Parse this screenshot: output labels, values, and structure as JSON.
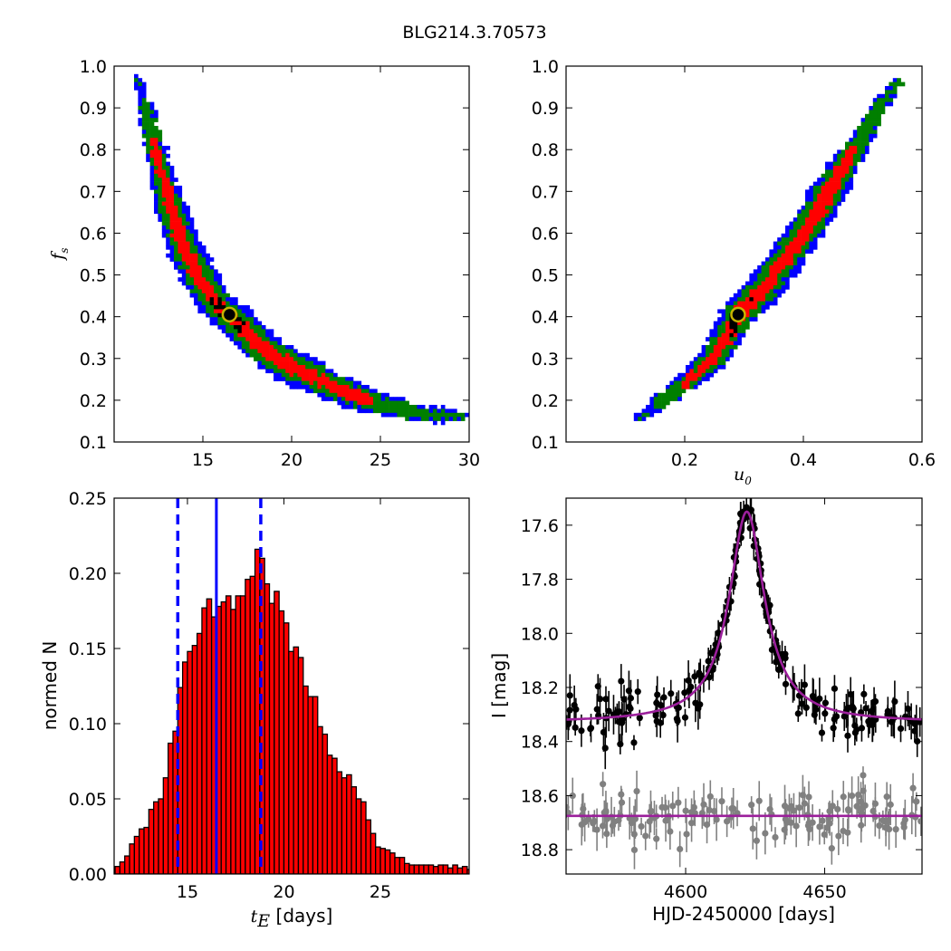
{
  "figure": {
    "title": "BLG214.3.70573"
  },
  "chart_data": [
    {
      "id": "fs_vs_tE",
      "type": "heatmap",
      "description_levels": [
        "blue",
        "green",
        "red",
        "black"
      ],
      "colors": {
        "level1": "#0000ff",
        "level2": "#007f00",
        "level3": "#ff0000",
        "level4": "#000000"
      },
      "xlim": [
        10,
        30
      ],
      "ylim": [
        0.1,
        1.0
      ],
      "xticks": [
        15,
        20,
        25,
        30
      ],
      "yticks": [
        0.1,
        0.2,
        0.3,
        0.4,
        0.5,
        0.6,
        0.7,
        0.8,
        0.9,
        1.0
      ],
      "xlabel": "",
      "ylabel": "f",
      "ylabel_sub": "s",
      "curve": [
        [
          11.3,
          0.97
        ],
        [
          12.0,
          0.86
        ],
        [
          12.5,
          0.77
        ],
        [
          13.0,
          0.69
        ],
        [
          13.5,
          0.62
        ],
        [
          14.0,
          0.56
        ],
        [
          15.0,
          0.48
        ],
        [
          16.0,
          0.42
        ],
        [
          16.6,
          0.4
        ],
        [
          17.5,
          0.36
        ],
        [
          18.5,
          0.32
        ],
        [
          20.0,
          0.28
        ],
        [
          21.5,
          0.25
        ],
        [
          23.0,
          0.22
        ],
        [
          25.0,
          0.19
        ],
        [
          27.0,
          0.17
        ],
        [
          29.7,
          0.16
        ]
      ],
      "best_fit": {
        "x": 16.5,
        "y": 0.405
      }
    },
    {
      "id": "fs_vs_u0",
      "type": "heatmap",
      "xlim": [
        0.0,
        0.6
      ],
      "ylim": [
        0.1,
        1.0
      ],
      "xticks": [
        0.2,
        0.4,
        0.6
      ],
      "yticks": [
        0.1,
        0.2,
        0.3,
        0.4,
        0.5,
        0.6,
        0.7,
        0.8,
        0.9,
        1.0
      ],
      "xlabel": "u",
      "xlabel_sub": "0",
      "ylabel": "",
      "curve": [
        [
          0.125,
          0.16
        ],
        [
          0.15,
          0.185
        ],
        [
          0.2,
          0.24
        ],
        [
          0.25,
          0.3
        ],
        [
          0.29,
          0.405
        ],
        [
          0.33,
          0.46
        ],
        [
          0.38,
          0.56
        ],
        [
          0.42,
          0.64
        ],
        [
          0.46,
          0.74
        ],
        [
          0.5,
          0.83
        ],
        [
          0.53,
          0.91
        ],
        [
          0.56,
          0.96
        ]
      ],
      "best_fit": {
        "x": 0.29,
        "y": 0.405
      }
    },
    {
      "id": "tE_histogram",
      "type": "bar",
      "xlim": [
        11.2,
        29.6
      ],
      "ylim": [
        0.0,
        0.25
      ],
      "xticks": [
        15,
        20,
        25
      ],
      "yticks": [
        0.0,
        0.05,
        0.1,
        0.15,
        0.2,
        0.25
      ],
      "ytick_labels": [
        "0.00",
        "0.05",
        "0.10",
        "0.15",
        "0.20",
        "0.25"
      ],
      "xlabel": "t",
      "xlabel_sub": "E",
      "xlabel_suffix": " [days]",
      "ylabel": "normed N",
      "bin_width": 0.25,
      "bin_start": 11.25,
      "values": [
        0.005,
        0.008,
        0.012,
        0.02,
        0.025,
        0.03,
        0.031,
        0.043,
        0.048,
        0.05,
        0.064,
        0.087,
        0.095,
        0.124,
        0.141,
        0.148,
        0.152,
        0.16,
        0.177,
        0.183,
        0.171,
        0.178,
        0.181,
        0.185,
        0.176,
        0.185,
        0.185,
        0.196,
        0.198,
        0.216,
        0.21,
        0.193,
        0.18,
        0.188,
        0.175,
        0.167,
        0.148,
        0.151,
        0.144,
        0.125,
        0.118,
        0.118,
        0.098,
        0.093,
        0.079,
        0.077,
        0.068,
        0.064,
        0.066,
        0.058,
        0.05,
        0.048,
        0.036,
        0.027,
        0.018,
        0.017,
        0.016,
        0.014,
        0.011,
        0.011,
        0.007,
        0.006,
        0.006,
        0.006,
        0.006,
        0.006,
        0.005,
        0.006,
        0.006,
        0.004,
        0.006,
        0.004,
        0.005,
        0.003,
        0.003,
        0.002,
        0.002
      ],
      "bar_color": "#ff0000",
      "vlines": {
        "median": 16.5,
        "lower": 14.5,
        "upper": 18.8,
        "color": "#0000ff"
      }
    },
    {
      "id": "light_curve",
      "type": "scatter",
      "xlim": [
        4557,
        4685
      ],
      "ylim": [
        18.89,
        17.5
      ],
      "xticks": [
        4600,
        4650
      ],
      "yticks": [
        17.6,
        17.8,
        18.0,
        18.2,
        18.4,
        18.6,
        18.8
      ],
      "xlabel": "HJD-2450000 [days]",
      "ylabel": "I [mag]",
      "model": {
        "t0": 4622.0,
        "peak_mag": 17.55,
        "baseline_mag": 18.33,
        "color": "#9b1f9b"
      },
      "reference_line": {
        "mag": 18.675,
        "color": "#9b1f9b"
      },
      "series": [
        {
          "name": "",
          "color": "#000000",
          "baseline_mag": 18.33,
          "scatter": 0.045
        },
        {
          "name": "",
          "color": "#808080",
          "baseline_mag": 18.675,
          "scatter": 0.05
        }
      ]
    }
  ]
}
